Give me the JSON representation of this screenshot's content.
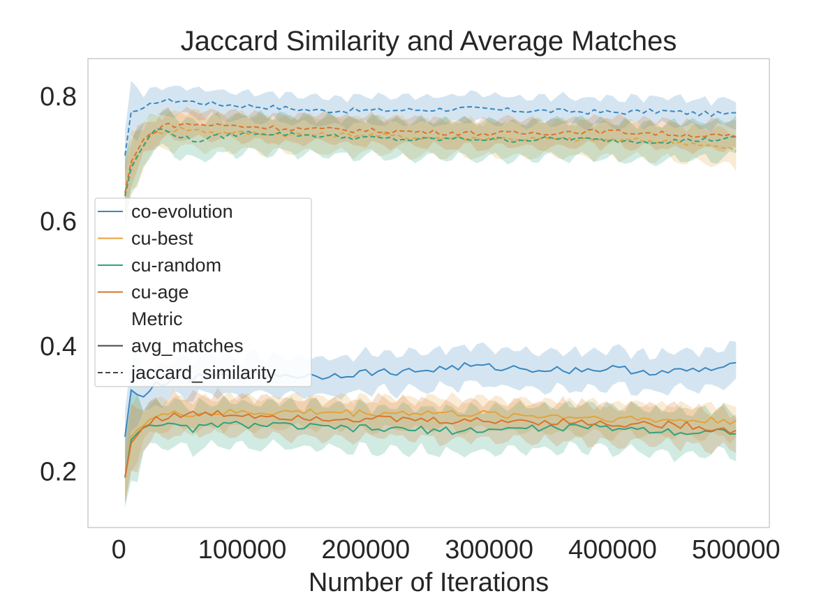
{
  "chart_data": {
    "type": "line",
    "title": "Jaccard Similarity and Average Matches",
    "xlabel": "Number of Iterations",
    "ylabel": "",
    "xlim": [
      -25000,
      527000
    ],
    "ylim": [
      0.11,
      0.86
    ],
    "xticks": [
      0,
      100000,
      200000,
      300000,
      400000,
      500000
    ],
    "xtick_labels": [
      "0",
      "100000",
      "200000",
      "300000",
      "400000",
      "500000"
    ],
    "yticks": [
      0.2,
      0.4,
      0.6,
      0.8
    ],
    "ytick_labels": [
      "0.2",
      "0.4",
      "0.6",
      "0.8"
    ],
    "grid": false,
    "legend": {
      "position": "center-left",
      "entries": [
        {
          "label": "co-evolution",
          "kind": "color",
          "color": "#3a87c0"
        },
        {
          "label": "cu-best",
          "kind": "color",
          "color": "#e5a23a"
        },
        {
          "label": "cu-random",
          "kind": "color",
          "color": "#2ea37f"
        },
        {
          "label": "cu-age",
          "kind": "color",
          "color": "#d7752a"
        },
        {
          "label": "Metric",
          "kind": "header"
        },
        {
          "label": "avg_matches",
          "kind": "solid",
          "color": "#444444"
        },
        {
          "label": "jaccard_similarity",
          "kind": "dashed",
          "color": "#444444"
        }
      ]
    },
    "series": [
      {
        "name": "co-evolution",
        "metric": "jaccard_similarity",
        "color": "#3a87c0",
        "dash": true,
        "points": [
          [
            5000,
            0.705
          ],
          [
            10000,
            0.775
          ],
          [
            20000,
            0.778
          ],
          [
            30000,
            0.792
          ],
          [
            50000,
            0.793
          ],
          [
            80000,
            0.787
          ],
          [
            120000,
            0.783
          ],
          [
            160000,
            0.777
          ],
          [
            200000,
            0.777
          ],
          [
            240000,
            0.778
          ],
          [
            280000,
            0.78
          ],
          [
            320000,
            0.777
          ],
          [
            360000,
            0.776
          ],
          [
            400000,
            0.774
          ],
          [
            440000,
            0.776
          ],
          [
            470000,
            0.772
          ],
          [
            500000,
            0.771
          ]
        ],
        "band": 0.022
      },
      {
        "name": "cu-best",
        "metric": "jaccard_similarity",
        "color": "#e5a23a",
        "dash": true,
        "points": [
          [
            5000,
            0.64
          ],
          [
            10000,
            0.69
          ],
          [
            20000,
            0.722
          ],
          [
            30000,
            0.742
          ],
          [
            50000,
            0.748
          ],
          [
            80000,
            0.742
          ],
          [
            120000,
            0.74
          ],
          [
            160000,
            0.738
          ],
          [
            200000,
            0.738
          ],
          [
            240000,
            0.734
          ],
          [
            280000,
            0.733
          ],
          [
            320000,
            0.732
          ],
          [
            360000,
            0.731
          ],
          [
            400000,
            0.73
          ],
          [
            440000,
            0.728
          ],
          [
            470000,
            0.724
          ],
          [
            500000,
            0.713
          ]
        ],
        "band": 0.028
      },
      {
        "name": "cu-random",
        "metric": "jaccard_similarity",
        "color": "#2ea37f",
        "dash": true,
        "points": [
          [
            5000,
            0.64
          ],
          [
            10000,
            0.685
          ],
          [
            20000,
            0.722
          ],
          [
            30000,
            0.748
          ],
          [
            45000,
            0.74
          ],
          [
            60000,
            0.728
          ],
          [
            80000,
            0.735
          ],
          [
            110000,
            0.742
          ],
          [
            150000,
            0.738
          ],
          [
            200000,
            0.733
          ],
          [
            240000,
            0.73
          ],
          [
            280000,
            0.732
          ],
          [
            320000,
            0.73
          ],
          [
            360000,
            0.732
          ],
          [
            400000,
            0.729
          ],
          [
            440000,
            0.728
          ],
          [
            470000,
            0.73
          ],
          [
            500000,
            0.732
          ]
        ],
        "band": 0.03
      },
      {
        "name": "cu-age",
        "metric": "jaccard_similarity",
        "color": "#d7752a",
        "dash": true,
        "points": [
          [
            5000,
            0.645
          ],
          [
            10000,
            0.695
          ],
          [
            20000,
            0.73
          ],
          [
            35000,
            0.753
          ],
          [
            60000,
            0.755
          ],
          [
            100000,
            0.752
          ],
          [
            140000,
            0.748
          ],
          [
            180000,
            0.746
          ],
          [
            220000,
            0.744
          ],
          [
            260000,
            0.742
          ],
          [
            300000,
            0.74
          ],
          [
            340000,
            0.741
          ],
          [
            380000,
            0.744
          ],
          [
            420000,
            0.742
          ],
          [
            460000,
            0.738
          ],
          [
            500000,
            0.735
          ]
        ],
        "band": 0.022
      },
      {
        "name": "co-evolution",
        "metric": "avg_matches",
        "color": "#3a87c0",
        "dash": false,
        "points": [
          [
            5000,
            0.255
          ],
          [
            10000,
            0.33
          ],
          [
            20000,
            0.315
          ],
          [
            30000,
            0.34
          ],
          [
            50000,
            0.348
          ],
          [
            80000,
            0.352
          ],
          [
            120000,
            0.355
          ],
          [
            160000,
            0.352
          ],
          [
            200000,
            0.358
          ],
          [
            240000,
            0.36
          ],
          [
            280000,
            0.368
          ],
          [
            320000,
            0.365
          ],
          [
            360000,
            0.362
          ],
          [
            400000,
            0.364
          ],
          [
            440000,
            0.358
          ],
          [
            480000,
            0.363
          ],
          [
            500000,
            0.368
          ]
        ],
        "band": 0.03
      },
      {
        "name": "cu-best",
        "metric": "avg_matches",
        "color": "#e5a23a",
        "dash": false,
        "points": [
          [
            5000,
            0.19
          ],
          [
            10000,
            0.255
          ],
          [
            20000,
            0.278
          ],
          [
            30000,
            0.288
          ],
          [
            50000,
            0.292
          ],
          [
            80000,
            0.293
          ],
          [
            120000,
            0.294
          ],
          [
            160000,
            0.295
          ],
          [
            200000,
            0.293
          ],
          [
            240000,
            0.294
          ],
          [
            280000,
            0.292
          ],
          [
            320000,
            0.29
          ],
          [
            360000,
            0.288
          ],
          [
            400000,
            0.285
          ],
          [
            440000,
            0.282
          ],
          [
            470000,
            0.281
          ],
          [
            500000,
            0.281
          ]
        ],
        "band": 0.025
      },
      {
        "name": "cu-random",
        "metric": "avg_matches",
        "color": "#2ea37f",
        "dash": false,
        "points": [
          [
            5000,
            0.19
          ],
          [
            10000,
            0.25
          ],
          [
            20000,
            0.272
          ],
          [
            30000,
            0.278
          ],
          [
            40000,
            0.272
          ],
          [
            60000,
            0.268
          ],
          [
            80000,
            0.275
          ],
          [
            120000,
            0.274
          ],
          [
            160000,
            0.27
          ],
          [
            200000,
            0.268
          ],
          [
            240000,
            0.266
          ],
          [
            280000,
            0.265
          ],
          [
            320000,
            0.268
          ],
          [
            360000,
            0.27
          ],
          [
            400000,
            0.27
          ],
          [
            440000,
            0.265
          ],
          [
            470000,
            0.262
          ],
          [
            500000,
            0.265
          ]
        ],
        "band": 0.035
      },
      {
        "name": "cu-age",
        "metric": "avg_matches",
        "color": "#d7752a",
        "dash": false,
        "points": [
          [
            5000,
            0.19
          ],
          [
            10000,
            0.245
          ],
          [
            20000,
            0.27
          ],
          [
            30000,
            0.285
          ],
          [
            50000,
            0.29
          ],
          [
            80000,
            0.292
          ],
          [
            120000,
            0.289
          ],
          [
            160000,
            0.286
          ],
          [
            200000,
            0.284
          ],
          [
            240000,
            0.282
          ],
          [
            280000,
            0.28
          ],
          [
            320000,
            0.281
          ],
          [
            360000,
            0.279
          ],
          [
            400000,
            0.276
          ],
          [
            440000,
            0.275
          ],
          [
            470000,
            0.272
          ],
          [
            500000,
            0.264
          ]
        ],
        "band": 0.03
      }
    ]
  }
}
